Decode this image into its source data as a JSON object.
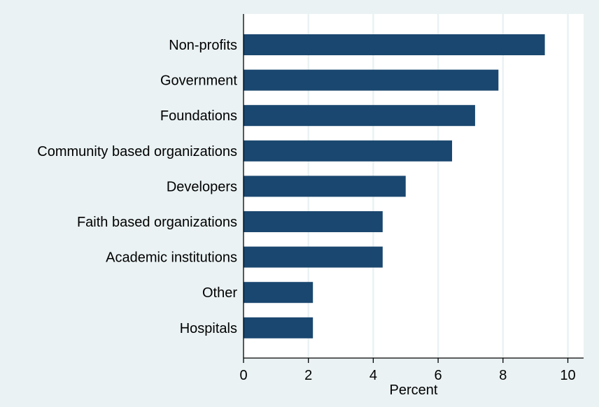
{
  "chart_data": {
    "type": "bar",
    "orientation": "horizontal",
    "categories": [
      "Non-profits",
      "Government",
      "Foundations",
      "Community based organizations",
      "Developers",
      "Faith based organizations",
      "Academic institutions",
      "Other",
      "Hospitals"
    ],
    "values": [
      9.29,
      7.86,
      7.14,
      6.43,
      5.0,
      4.29,
      4.29,
      2.14,
      2.14
    ],
    "title": "",
    "xlabel": "Percent",
    "ylabel": "",
    "xlim": [
      0,
      10.4
    ],
    "xticks": [
      "0",
      "2",
      "4",
      "6",
      "8",
      "10"
    ],
    "grid": true,
    "bar_color": "#1a476f",
    "plot_background": "#ffffff",
    "background": "#eaf2f3",
    "grid_color": "#eaf2f3"
  }
}
